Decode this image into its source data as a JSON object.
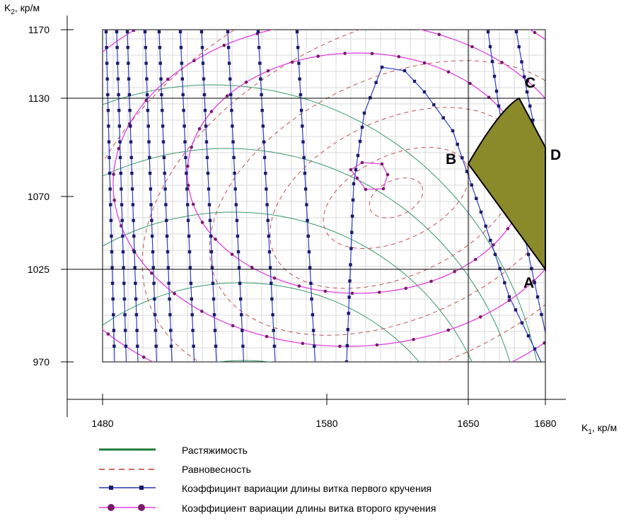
{
  "chart_data": {
    "type": "line",
    "x_axis": {
      "label_main": "K",
      "label_sub": "1",
      "label_rest": ", кр/м",
      "ticks": [
        1480,
        1580,
        1650,
        1680
      ],
      "range": [
        1480,
        1680
      ]
    },
    "y_axis": {
      "label_main": "K",
      "label_sub": "2",
      "label_rest": ", кр/м",
      "ticks": [
        970,
        1025,
        1070,
        1130,
        1170
      ],
      "range": [
        970,
        1170
      ]
    },
    "reference_lines": {
      "horizontal": [
        1025,
        1130
      ],
      "vertical": [
        1650,
        1680
      ]
    },
    "region_points": [
      {
        "name": "A",
        "x": 1680,
        "y": 1025
      },
      {
        "name": "B",
        "x": 1650,
        "y": 1090
      },
      {
        "name": "C",
        "x": 1675,
        "y": 1130
      },
      {
        "name": "D",
        "x": 1680,
        "y": 1100
      }
    ],
    "region_fill": "#8b8a2a",
    "series": [
      {
        "name": "Растяжимость",
        "color": "#1f7a3a",
        "style": "solid"
      },
      {
        "name": "Равновесность",
        "color": "#c0392b",
        "style": "dashed"
      },
      {
        "name": "Коэффицинт вариации длины витка первого кручения",
        "color": "#2233aa",
        "style": "square-markers"
      },
      {
        "name": "Коэффициент вариации длины витка второго кручения",
        "color": "#e040e0",
        "marker_color": "#7a1a6a",
        "style": "circle-markers"
      }
    ]
  }
}
